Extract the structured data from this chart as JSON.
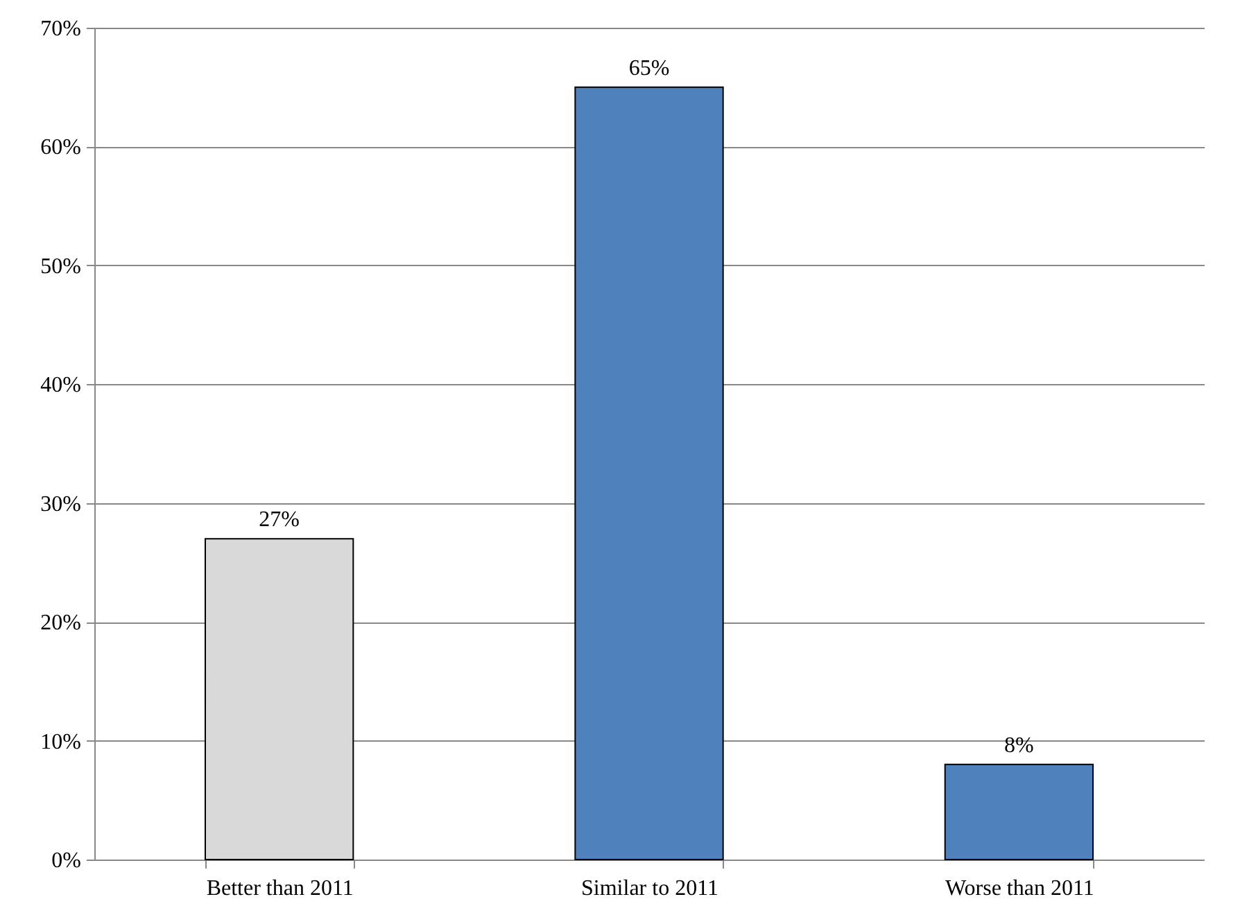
{
  "chart_data": {
    "type": "bar",
    "categories": [
      "Better than 2011",
      "Similar to 2011",
      "Worse than 2011"
    ],
    "values": [
      27,
      65,
      8
    ],
    "colors": [
      "#d9d9d9",
      "#4f81bd",
      "#4f81bd"
    ],
    "value_labels": [
      "27%",
      "65%",
      "8%"
    ],
    "ylim": [
      0,
      70
    ],
    "yticks": [
      {
        "value": 0,
        "label": "0%"
      },
      {
        "value": 10,
        "label": "10%"
      },
      {
        "value": 20,
        "label": "20%"
      },
      {
        "value": 30,
        "label": "30%"
      },
      {
        "value": 40,
        "label": "40%"
      },
      {
        "value": 50,
        "label": "50%"
      },
      {
        "value": 60,
        "label": "60%"
      },
      {
        "value": 70,
        "label": "70%"
      }
    ],
    "grid": "y"
  }
}
